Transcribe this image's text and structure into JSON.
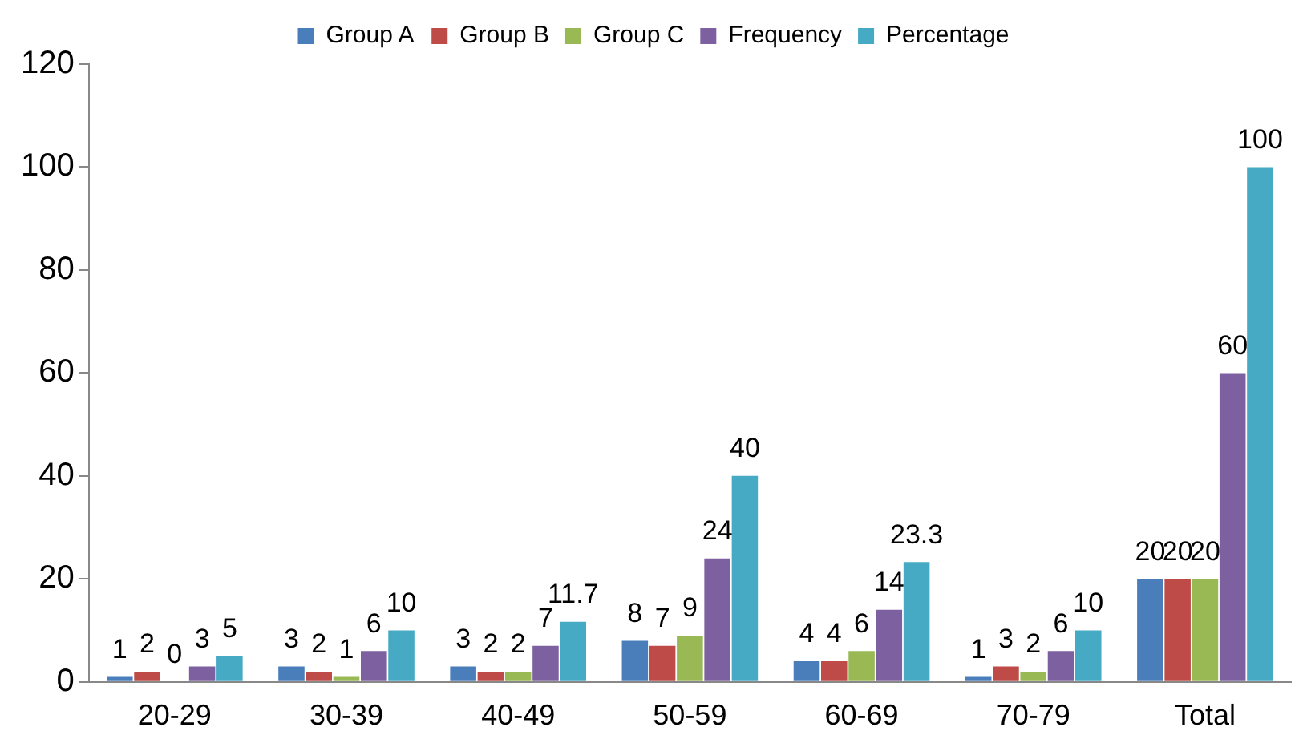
{
  "chart_data": {
    "type": "bar",
    "categories": [
      "20-29",
      "30-39",
      "40-49",
      "50-59",
      "60-69",
      "70-79",
      "Total"
    ],
    "series": [
      {
        "name": "Group A",
        "color": "#4a7ebb",
        "values": [
          1,
          3,
          3,
          8,
          4,
          1,
          20
        ]
      },
      {
        "name": "Group B",
        "color": "#be4b48",
        "values": [
          2,
          2,
          2,
          7,
          4,
          3,
          20
        ]
      },
      {
        "name": "Group C",
        "color": "#98b954",
        "values": [
          0,
          1,
          2,
          9,
          6,
          2,
          20
        ]
      },
      {
        "name": "Frequency",
        "color": "#7d60a0",
        "values": [
          3,
          6,
          7,
          24,
          14,
          6,
          60
        ]
      },
      {
        "name": "Percentage",
        "color": "#46aac5",
        "values": [
          5,
          10,
          11.7,
          40,
          23.3,
          10,
          100
        ]
      }
    ],
    "ylim": [
      0,
      120
    ],
    "yticks": [
      0,
      20,
      40,
      60,
      80,
      100,
      120
    ],
    "grid": false,
    "legend": "top",
    "data_labels": true
  }
}
